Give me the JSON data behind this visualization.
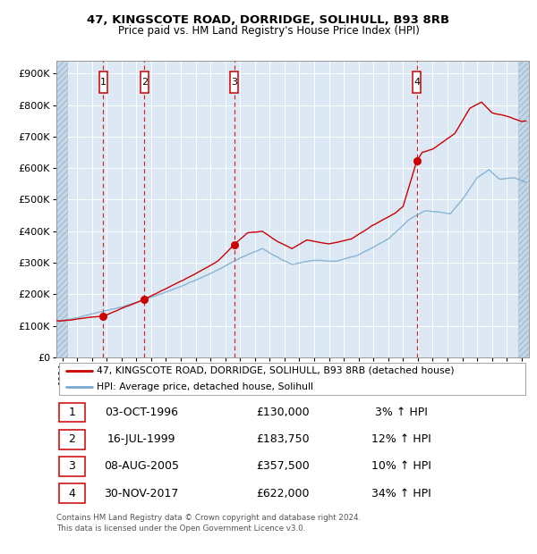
{
  "title": "47, KINGSCOTE ROAD, DORRIDGE, SOLIHULL, B93 8RB",
  "subtitle": "Price paid vs. HM Land Registry's House Price Index (HPI)",
  "legend_line1": "47, KINGSCOTE ROAD, DORRIDGE, SOLIHULL, B93 8RB (detached house)",
  "legend_line2": "HPI: Average price, detached house, Solihull",
  "footer1": "Contains HM Land Registry data © Crown copyright and database right 2024.",
  "footer2": "This data is licensed under the Open Government Licence v3.0.",
  "sales": [
    {
      "num": 1,
      "date_label": "03-OCT-1996",
      "price": 130000,
      "pct": "3%",
      "x_year": 1996.75
    },
    {
      "num": 2,
      "date_label": "16-JUL-1999",
      "price": 183750,
      "pct": "12%",
      "x_year": 1999.54
    },
    {
      "num": 3,
      "date_label": "08-AUG-2005",
      "price": 357500,
      "pct": "10%",
      "x_year": 2005.6
    },
    {
      "num": 4,
      "date_label": "30-NOV-2017",
      "price": 622000,
      "pct": "34%",
      "x_year": 2017.92
    }
  ],
  "hpi_color": "#7aaace",
  "price_color": "#cc0000",
  "sale_dot_color": "#cc0000",
  "vline_color": "#cc0000",
  "background_color": "#dce9f5",
  "ylim": [
    0,
    940000
  ],
  "ytick_vals": [
    0,
    100000,
    200000,
    300000,
    400000,
    500000,
    600000,
    700000,
    800000,
    900000
  ],
  "ytick_labels": [
    "£0",
    "£100K",
    "£200K",
    "£300K",
    "£400K",
    "£500K",
    "£600K",
    "£700K",
    "£800K",
    "£900K"
  ],
  "xtick_years": [
    1994,
    1995,
    1996,
    1997,
    1998,
    1999,
    2000,
    2001,
    2002,
    2003,
    2004,
    2005,
    2006,
    2007,
    2008,
    2009,
    2010,
    2011,
    2012,
    2013,
    2014,
    2015,
    2016,
    2017,
    2018,
    2019,
    2020,
    2021,
    2022,
    2023,
    2024,
    2025
  ],
  "xlim_start": 1993.6,
  "xlim_end": 2025.5,
  "hpi_key_x": [
    1993.6,
    1994.5,
    1996.0,
    1998.0,
    2000.0,
    2002.0,
    2004.0,
    2006.0,
    2007.5,
    2008.8,
    2009.5,
    2011.0,
    2012.5,
    2014.0,
    2016.0,
    2017.5,
    2018.5,
    2019.5,
    2020.2,
    2021.0,
    2022.0,
    2022.8,
    2023.5,
    2024.5,
    2025.3
  ],
  "hpi_key_y": [
    115000,
    120000,
    138000,
    160000,
    190000,
    225000,
    265000,
    315000,
    345000,
    310000,
    295000,
    308000,
    305000,
    325000,
    375000,
    440000,
    465000,
    460000,
    455000,
    500000,
    570000,
    595000,
    565000,
    570000,
    555000
  ],
  "price_key_x": [
    1993.6,
    1994.5,
    1995.5,
    1996.75,
    1998.0,
    1999.54,
    2001.0,
    2003.0,
    2004.5,
    2005.6,
    2006.5,
    2007.5,
    2008.5,
    2009.5,
    2010.5,
    2012.0,
    2013.5,
    2015.0,
    2016.5,
    2017.0,
    2017.92,
    2018.3,
    2019.0,
    2020.5,
    2021.5,
    2022.3,
    2023.0,
    2024.0,
    2025.0,
    2025.3
  ],
  "price_key_y": [
    115000,
    118000,
    125000,
    130000,
    155000,
    183750,
    218000,
    265000,
    305000,
    357500,
    395000,
    400000,
    368000,
    345000,
    372000,
    360000,
    375000,
    420000,
    458000,
    478000,
    622000,
    650000,
    660000,
    710000,
    790000,
    810000,
    775000,
    765000,
    748000,
    750000
  ]
}
